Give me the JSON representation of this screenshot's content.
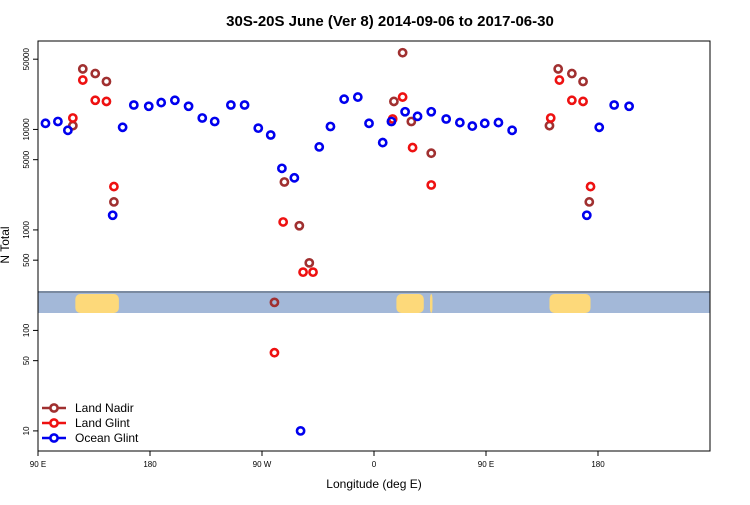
{
  "chart_data": {
    "type": "scatter",
    "title": "30S-20S June (Ver 8)   2014-09-06 to 2017-06-30",
    "xlabel": "Longitude (deg E)",
    "ylabel": "N Total",
    "y_scale": "log",
    "xlim": [
      90,
      630
    ],
    "ylim_log10": [
      0.8,
      4.88
    ],
    "x_ticks": [
      {
        "value": 90,
        "label": "90 E"
      },
      {
        "value": 180,
        "label": "180"
      },
      {
        "value": 270,
        "label": "90 W"
      },
      {
        "value": 360,
        "label": "0"
      },
      {
        "value": 450,
        "label": "90 E"
      },
      {
        "value": 540,
        "label": "180"
      }
    ],
    "y_ticks": [
      {
        "value": 10,
        "label": "10"
      },
      {
        "value": 50,
        "label": "50"
      },
      {
        "value": 100,
        "label": "100"
      },
      {
        "value": 500,
        "label": "500"
      },
      {
        "value": 1000,
        "label": "1000"
      },
      {
        "value": 5000,
        "label": "5000"
      },
      {
        "value": 10000,
        "label": "10000"
      },
      {
        "value": 50000,
        "label": "50000"
      }
    ],
    "legend_position": "bottom-left",
    "series": [
      {
        "name": "Land Nadir",
        "color": "#a03030",
        "points": [
          [
            118,
            10900
          ],
          [
            126,
            40000
          ],
          [
            136,
            36000
          ],
          [
            145,
            30000
          ],
          [
            151,
            1900
          ],
          [
            288,
            3000
          ],
          [
            300,
            1100
          ],
          [
            308,
            470
          ],
          [
            376,
            19000
          ],
          [
            383,
            58000
          ],
          [
            390,
            12000
          ],
          [
            406,
            5800
          ],
          [
            501,
            10900
          ],
          [
            508,
            40000
          ],
          [
            519,
            36000
          ],
          [
            528,
            30000
          ],
          [
            533,
            1900
          ],
          [
            280,
            190
          ]
        ]
      },
      {
        "name": "Land Glint",
        "color": "#ee1111",
        "points": [
          [
            118,
            13000
          ],
          [
            126,
            31000
          ],
          [
            136,
            19500
          ],
          [
            145,
            19000
          ],
          [
            151,
            2700
          ],
          [
            280,
            60
          ],
          [
            287,
            1200
          ],
          [
            303,
            380
          ],
          [
            311,
            380
          ],
          [
            375,
            12700
          ],
          [
            383,
            21000
          ],
          [
            391,
            6600
          ],
          [
            406,
            2800
          ],
          [
            502,
            13000
          ],
          [
            509,
            31000
          ],
          [
            519,
            19500
          ],
          [
            528,
            19000
          ],
          [
            534,
            2700
          ]
        ]
      },
      {
        "name": "Ocean Glint",
        "color": "#0000ee",
        "points": [
          [
            96,
            11500
          ],
          [
            106,
            12000
          ],
          [
            114,
            9800
          ],
          [
            150,
            1400
          ],
          [
            158,
            10500
          ],
          [
            167,
            17500
          ],
          [
            179,
            17000
          ],
          [
            189,
            18500
          ],
          [
            200,
            19500
          ],
          [
            211,
            17000
          ],
          [
            222,
            13000
          ],
          [
            232,
            12000
          ],
          [
            245,
            17500
          ],
          [
            256,
            17500
          ],
          [
            267,
            10300
          ],
          [
            277,
            8800
          ],
          [
            286,
            4100
          ],
          [
            296,
            3300
          ],
          [
            301,
            10
          ],
          [
            316,
            6700
          ],
          [
            325,
            10700
          ],
          [
            336,
            20000
          ],
          [
            347,
            21000
          ],
          [
            356,
            11500
          ],
          [
            367,
            7400
          ],
          [
            374,
            12000
          ],
          [
            385,
            15000
          ],
          [
            395,
            13500
          ],
          [
            406,
            15000
          ],
          [
            418,
            12700
          ],
          [
            429,
            11700
          ],
          [
            439,
            10800
          ],
          [
            449,
            11500
          ],
          [
            460,
            11700
          ],
          [
            471,
            9800
          ],
          [
            531,
            1400
          ],
          [
            541,
            10500
          ],
          [
            553,
            17500
          ],
          [
            565,
            17000
          ]
        ]
      }
    ],
    "land_regions": [
      [
        120,
        155
      ],
      [
        378,
        400
      ],
      [
        405,
        407
      ],
      [
        501,
        534
      ]
    ]
  }
}
